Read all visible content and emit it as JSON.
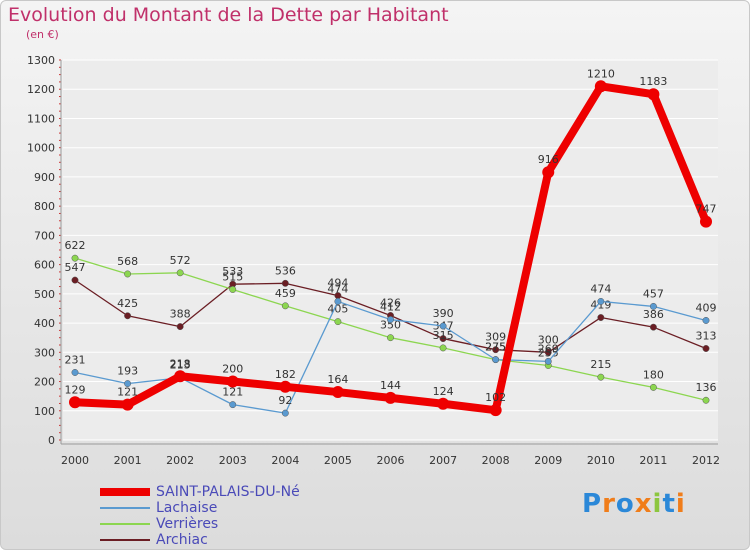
{
  "chart_data": {
    "type": "line",
    "title": "Evolution du Montant de la Dette par Habitant",
    "subtitle": "(en €)",
    "x": [
      "2000",
      "2001",
      "2002",
      "2003",
      "2004",
      "2005",
      "2006",
      "2007",
      "2008",
      "2009",
      "2010",
      "2011",
      "2012"
    ],
    "ylim": [
      0,
      1300
    ],
    "yticks": [
      0,
      100,
      200,
      300,
      400,
      500,
      600,
      700,
      800,
      900,
      1000,
      1100,
      1200,
      1300
    ],
    "grid": true,
    "legend_position": "bottom-left",
    "series": [
      {
        "name": "SAINT-PALAIS-DU-Né",
        "color": "#ee0000",
        "values": [
          129,
          121,
          218,
          200,
          182,
          164,
          144,
          124,
          102,
          916,
          1210,
          1183,
          747
        ]
      },
      {
        "name": "Lachaise",
        "color": "#5a9ad0",
        "values": [
          231,
          193,
          213,
          121,
          92,
          474,
          412,
          390,
          275,
          269,
          474,
          457,
          409
        ]
      },
      {
        "name": "Verrières",
        "color": "#8cd650",
        "values": [
          622,
          568,
          572,
          515,
          459,
          405,
          350,
          315,
          275,
          255,
          215,
          180,
          136
        ]
      },
      {
        "name": "Archiac",
        "color": "#6b1e24",
        "values": [
          547,
          425,
          388,
          533,
          536,
          494,
          426,
          347,
          309,
          300,
          419,
          386,
          313
        ]
      }
    ]
  },
  "logo": {
    "text": "Proxiti"
  }
}
